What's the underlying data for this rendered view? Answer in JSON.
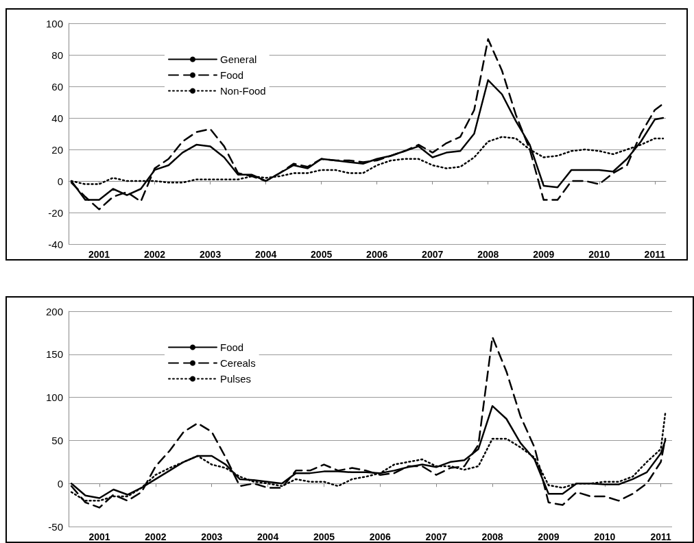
{
  "chart_data": [
    {
      "type": "line",
      "x": [
        2000.5,
        2000.75,
        2001,
        2001.25,
        2001.5,
        2001.75,
        2002,
        2002.25,
        2002.5,
        2002.75,
        2003,
        2003.25,
        2003.5,
        2003.75,
        2004,
        2004.25,
        2004.5,
        2004.75,
        2005,
        2005.25,
        2005.5,
        2005.75,
        2006,
        2006.25,
        2006.5,
        2006.75,
        2007,
        2007.25,
        2007.5,
        2007.75,
        2008,
        2008.25,
        2008.5,
        2008.75,
        2009,
        2009.25,
        2009.5,
        2009.75,
        2010,
        2010.25,
        2010.5,
        2010.75,
        2011,
        2011.15
      ],
      "xlim": [
        2000.45,
        2011.2
      ],
      "xticks": [
        2001,
        2002,
        2003,
        2004,
        2005,
        2006,
        2007,
        2008,
        2009,
        2010,
        2011
      ],
      "ylim": [
        -40,
        100
      ],
      "yticks": [
        -40,
        -20,
        0,
        20,
        40,
        60,
        80,
        100
      ],
      "grid": "y",
      "legend": "top left",
      "series": [
        {
          "name": "General",
          "color": "#000000",
          "line_style": "solid",
          "values": [
            0,
            -12,
            -12,
            -5,
            -9,
            -5,
            7,
            10,
            18,
            23,
            22,
            15,
            4,
            4,
            0,
            5,
            10,
            8,
            14,
            13,
            12,
            11,
            14,
            16,
            19,
            22,
            15,
            18,
            19,
            30,
            64,
            55,
            38,
            23,
            -3,
            -4,
            7,
            7,
            7,
            6,
            14,
            25,
            39,
            40
          ]
        },
        {
          "name": "Food",
          "color": "#000000",
          "line_style": "dashed",
          "values": [
            -1,
            -10,
            -18,
            -10,
            -7,
            -13,
            8,
            14,
            25,
            31,
            33,
            22,
            5,
            3,
            0,
            5,
            11,
            9,
            14,
            13,
            13,
            12,
            13,
            16,
            19,
            23,
            18,
            24,
            28,
            45,
            90,
            70,
            42,
            20,
            -12,
            -12,
            0,
            0,
            -2,
            5,
            10,
            30,
            45,
            49
          ]
        },
        {
          "name": "Non-Food",
          "color": "#000000",
          "line_style": "dotted",
          "values": [
            0,
            -2,
            -2,
            2,
            0,
            0,
            0,
            -1,
            -1,
            1,
            1,
            1,
            1,
            3,
            2,
            3,
            5,
            5,
            7,
            7,
            5,
            5,
            10,
            13,
            14,
            14,
            10,
            8,
            9,
            15,
            25,
            28,
            27,
            20,
            15,
            16,
            19,
            20,
            19,
            17,
            20,
            23,
            27,
            27
          ]
        }
      ]
    },
    {
      "type": "line",
      "x": [
        2000.5,
        2000.75,
        2001,
        2001.25,
        2001.5,
        2001.75,
        2002,
        2002.25,
        2002.5,
        2002.75,
        2003,
        2003.25,
        2003.5,
        2003.75,
        2004,
        2004.25,
        2004.5,
        2004.75,
        2005,
        2005.25,
        2005.5,
        2005.75,
        2006,
        2006.25,
        2006.5,
        2006.75,
        2007,
        2007.25,
        2007.5,
        2007.75,
        2008,
        2008.25,
        2008.5,
        2008.75,
        2009,
        2009.25,
        2009.5,
        2009.75,
        2010,
        2010.25,
        2010.5,
        2010.75,
        2011,
        2011.08
      ],
      "xlim": [
        2000.45,
        2011.2
      ],
      "xticks": [
        2001,
        2002,
        2003,
        2004,
        2005,
        2006,
        2007,
        2008,
        2009,
        2010,
        2011
      ],
      "ylim": [
        -50,
        200
      ],
      "yticks": [
        -50,
        0,
        50,
        100,
        150,
        200
      ],
      "grid": "y",
      "legend": "top left",
      "series": [
        {
          "name": "Food",
          "color": "#000000",
          "line_style": "solid",
          "values": [
            0,
            -14,
            -17,
            -7,
            -13,
            -5,
            5,
            15,
            25,
            32,
            32,
            22,
            5,
            4,
            2,
            0,
            12,
            12,
            14,
            14,
            13,
            13,
            12,
            15,
            19,
            22,
            19,
            25,
            27,
            40,
            90,
            75,
            47,
            28,
            -12,
            -12,
            0,
            0,
            -1,
            -1,
            5,
            13,
            35,
            50
          ]
        },
        {
          "name": "Cereals",
          "color": "#000000",
          "line_style": "dashed",
          "values": [
            -3,
            -22,
            -28,
            -13,
            -20,
            -10,
            20,
            38,
            60,
            70,
            60,
            30,
            -3,
            0,
            -5,
            -5,
            15,
            15,
            22,
            15,
            18,
            15,
            10,
            12,
            20,
            20,
            10,
            18,
            20,
            45,
            170,
            130,
            78,
            42,
            -22,
            -25,
            -10,
            -15,
            -15,
            -20,
            -12,
            0,
            25,
            52
          ]
        },
        {
          "name": "Pulses",
          "color": "#000000",
          "line_style": "dotted",
          "values": [
            -10,
            -20,
            -20,
            -15,
            -15,
            -5,
            10,
            18,
            25,
            32,
            22,
            18,
            8,
            2,
            0,
            -3,
            5,
            2,
            2,
            -3,
            5,
            8,
            12,
            22,
            25,
            28,
            20,
            20,
            16,
            20,
            52,
            52,
            42,
            30,
            -2,
            -5,
            0,
            0,
            2,
            2,
            8,
            25,
            40,
            82
          ]
        }
      ]
    }
  ]
}
